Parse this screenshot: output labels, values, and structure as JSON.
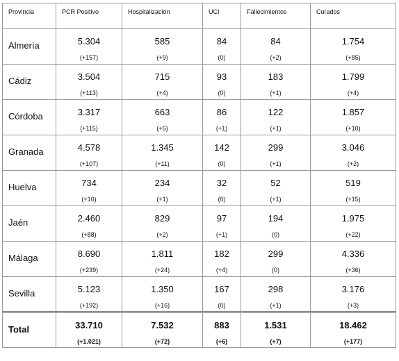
{
  "table": {
    "header": [
      "Provincia",
      "PCR Positivo",
      "Hospitalización",
      "UCI",
      "Fallecimientos",
      "Curados"
    ],
    "rows": [
      {
        "province": "Almería",
        "cells": [
          [
            "5.304",
            "(+157)"
          ],
          [
            "585",
            "(+9)"
          ],
          [
            "84",
            "(0)"
          ],
          [
            "84",
            "(+2)"
          ],
          [
            "1.754",
            "(+85)"
          ]
        ]
      },
      {
        "province": "Cádiz",
        "cells": [
          [
            "3.504",
            "(+113)"
          ],
          [
            "715",
            "(+4)"
          ],
          [
            "93",
            "(0)"
          ],
          [
            "183",
            "(+1)"
          ],
          [
            "1.799",
            "(+4)"
          ]
        ]
      },
      {
        "province": "Córdoba",
        "cells": [
          [
            "3.317",
            "(+115)"
          ],
          [
            "663",
            "(+5)"
          ],
          [
            "86",
            "(+1)"
          ],
          [
            "122",
            "(+1)"
          ],
          [
            "1.857",
            "(+10)"
          ]
        ]
      },
      {
        "province": "Granada",
        "cells": [
          [
            "4.578",
            "(+107)"
          ],
          [
            "1.345",
            "(+11)"
          ],
          [
            "142",
            "(0)"
          ],
          [
            "299",
            "(+1)"
          ],
          [
            "3.046",
            "(+2)"
          ]
        ]
      },
      {
        "province": "Huelva",
        "cells": [
          [
            "734",
            "(+10)"
          ],
          [
            "234",
            "(+1)"
          ],
          [
            "32",
            "(0)"
          ],
          [
            "52",
            "(+1)"
          ],
          [
            "519",
            "(+15)"
          ]
        ]
      },
      {
        "province": "Jaén",
        "cells": [
          [
            "2.460",
            "(+88)"
          ],
          [
            "829",
            "(+2)"
          ],
          [
            "97",
            "(+1)"
          ],
          [
            "194",
            "(0)"
          ],
          [
            "1.975",
            "(+22)"
          ]
        ]
      },
      {
        "province": "Málaga",
        "cells": [
          [
            "8.690",
            "(+239)"
          ],
          [
            "1.811",
            "(+24)"
          ],
          [
            "182",
            "(+4)"
          ],
          [
            "299",
            "(0)"
          ],
          [
            "4.336",
            "(+36)"
          ]
        ]
      },
      {
        "province": "Sevilla",
        "cells": [
          [
            "5.123",
            "(+192)"
          ],
          [
            "1.350",
            "(+16)"
          ],
          [
            "167",
            "(0)"
          ],
          [
            "298",
            "(+1)"
          ],
          [
            "3.176",
            "(+3)"
          ]
        ]
      },
      {
        "province": "Total",
        "cells": [
          [
            "33.710",
            "(+1.021)"
          ],
          [
            "7.532",
            "(+72)"
          ],
          [
            "883",
            "(+6)"
          ],
          [
            "1.531",
            "(+7)"
          ],
          [
            "18.462",
            "(+177)"
          ]
        ]
      }
    ]
  }
}
